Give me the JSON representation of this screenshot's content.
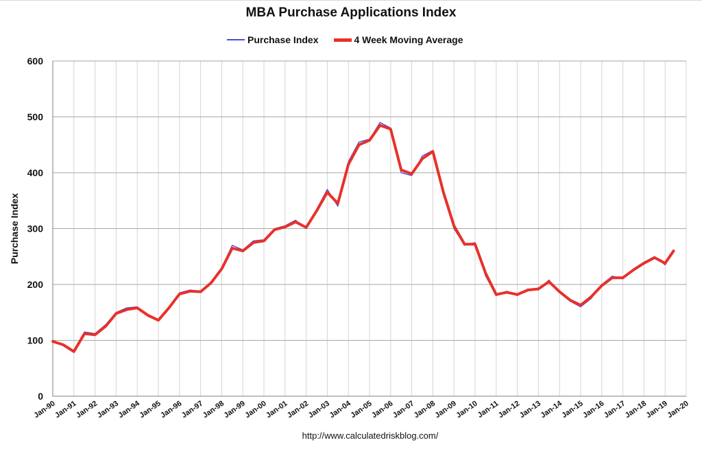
{
  "chart_data": {
    "type": "line",
    "title": "MBA Purchase Applications Index",
    "ylabel": "Purchase Index",
    "xlabel": "",
    "ylim": [
      0,
      600
    ],
    "yticks": [
      "0",
      "100",
      "200",
      "300",
      "400",
      "500",
      "600"
    ],
    "x_tick_labels": [
      "Jan-90",
      "Jan-91",
      "Jan-92",
      "Jan-93",
      "Jan-94",
      "Jan-95",
      "Jan-96",
      "Jan-97",
      "Jan-98",
      "Jan-99",
      "Jan-00",
      "Jan-01",
      "Jan-02",
      "Jan-03",
      "Jan-04",
      "Jan-05",
      "Jan-06",
      "Jan-07",
      "Jan-08",
      "Jan-09",
      "Jan-10",
      "Jan-11",
      "Jan-12",
      "Jan-13",
      "Jan-14",
      "Jan-15",
      "Jan-16",
      "Jan-17",
      "Jan-18",
      "Jan-19",
      "Jan-20"
    ],
    "xlim": [
      1990,
      2020
    ],
    "grid": true,
    "legend_position": "top",
    "source": "http://www.calculatedriskblog.com/",
    "series": [
      {
        "name": "Purchase Index",
        "color": "#4a4ae0",
        "style": "thin",
        "x": [
          1990.0,
          1990.5,
          1991.0,
          1991.5,
          1992.0,
          1992.5,
          1993.0,
          1993.5,
          1994.0,
          1994.5,
          1995.0,
          1995.5,
          1996.0,
          1996.5,
          1997.0,
          1997.5,
          1998.0,
          1998.5,
          1999.0,
          1999.5,
          2000.0,
          2000.5,
          2001.0,
          2001.5,
          2002.0,
          2002.5,
          2003.0,
          2003.5,
          2004.0,
          2004.5,
          2005.0,
          2005.5,
          2006.0,
          2006.5,
          2007.0,
          2007.5,
          2008.0,
          2008.5,
          2009.0,
          2009.5,
          2010.0,
          2010.5,
          2011.0,
          2011.5,
          2012.0,
          2012.5,
          2013.0,
          2013.5,
          2014.0,
          2014.5,
          2015.0,
          2015.5,
          2016.0,
          2016.5,
          2017.0,
          2017.5,
          2018.0,
          2018.5,
          2019.0,
          2019.4
        ],
        "values": [
          100,
          90,
          78,
          115,
          112,
          128,
          150,
          158,
          160,
          143,
          135,
          160,
          185,
          190,
          188,
          205,
          230,
          270,
          262,
          278,
          280,
          300,
          305,
          315,
          300,
          335,
          370,
          340,
          420,
          455,
          460,
          490,
          480,
          400,
          395,
          430,
          440,
          360,
          300,
          270,
          275,
          215,
          180,
          188,
          180,
          192,
          190,
          208,
          185,
          170,
          160,
          175,
          200,
          215,
          210,
          228,
          240,
          250,
          235,
          262
        ]
      },
      {
        "name": "4 Week Moving Average",
        "color": "#e8312a",
        "style": "thick",
        "x": [
          1990.0,
          1990.5,
          1991.0,
          1991.5,
          1992.0,
          1992.5,
          1993.0,
          1993.5,
          1994.0,
          1994.5,
          1995.0,
          1995.5,
          1996.0,
          1996.5,
          1997.0,
          1997.5,
          1998.0,
          1998.5,
          1999.0,
          1999.5,
          2000.0,
          2000.5,
          2001.0,
          2001.5,
          2002.0,
          2002.5,
          2003.0,
          2003.5,
          2004.0,
          2004.5,
          2005.0,
          2005.5,
          2006.0,
          2006.5,
          2007.0,
          2007.5,
          2008.0,
          2008.5,
          2009.0,
          2009.5,
          2010.0,
          2010.5,
          2011.0,
          2011.5,
          2012.0,
          2012.5,
          2013.0,
          2013.5,
          2014.0,
          2014.5,
          2015.0,
          2015.5,
          2016.0,
          2016.5,
          2017.0,
          2017.5,
          2018.0,
          2018.5,
          2019.0,
          2019.4
        ],
        "values": [
          98,
          92,
          80,
          112,
          110,
          125,
          148,
          155,
          158,
          145,
          136,
          158,
          183,
          188,
          187,
          203,
          228,
          265,
          260,
          275,
          278,
          298,
          303,
          312,
          302,
          332,
          365,
          345,
          415,
          450,
          458,
          485,
          478,
          405,
          398,
          425,
          438,
          365,
          305,
          272,
          272,
          220,
          182,
          186,
          182,
          190,
          192,
          205,
          187,
          172,
          163,
          178,
          198,
          212,
          212,
          226,
          238,
          248,
          238,
          260
        ]
      }
    ]
  }
}
